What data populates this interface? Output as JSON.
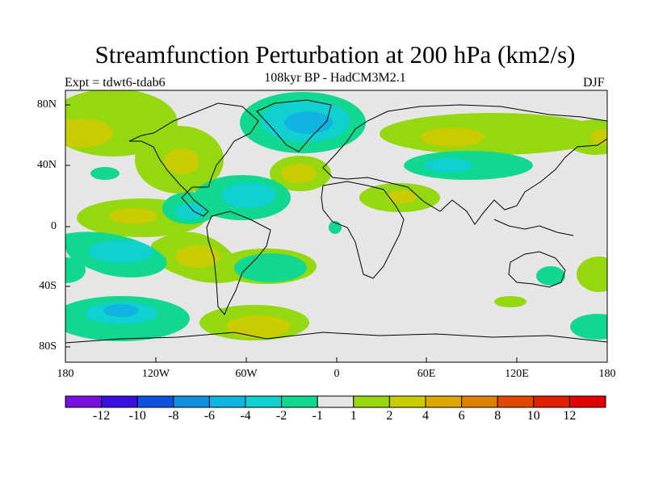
{
  "title": "Streamfunction Perturbation at 200 hPa (km2/s)",
  "subtitle": "108kyr BP - HadCM3M2.1",
  "experiment": "Expt = tdwt6-tdab6",
  "season": "DJF",
  "lat_labels": [
    "80N",
    "40N",
    "0",
    "40S",
    "80S"
  ],
  "lon_labels": [
    "180",
    "120W",
    "60W",
    "0",
    "60E",
    "120E",
    "180"
  ],
  "colorbar": {
    "labels": [
      "-12",
      "-10",
      "-8",
      "-6",
      "-4",
      "-2",
      "-1",
      "1",
      "2",
      "4",
      "6",
      "8",
      "10",
      "12"
    ],
    "colors": [
      "#7a10e0",
      "#3a10e0",
      "#1050e0",
      "#1090e0",
      "#10b4e0",
      "#10d0d0",
      "#10d890",
      "#e6e6e6",
      "#96d810",
      "#c8cc00",
      "#dca800",
      "#e08000",
      "#e04800",
      "#e02000",
      "#e00000"
    ]
  },
  "field_colors": {
    "background": "#e6e6e6",
    "pos_weak": "#96d810",
    "pos_mid": "#c8cc00",
    "neg_weak": "#10d890",
    "neg_mid": "#10d0d0",
    "neg_strong": "#10b4e0"
  }
}
